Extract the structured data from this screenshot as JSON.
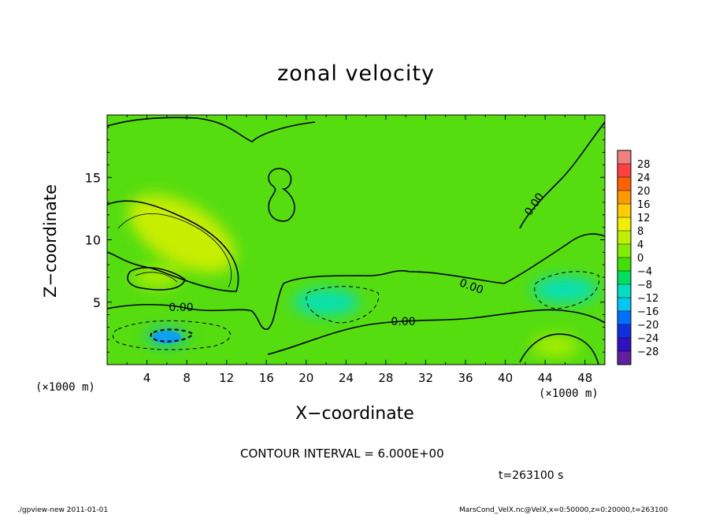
{
  "chart_data": {
    "type": "heatmap",
    "title": "zonal velocity",
    "xlabel": "X−coordinate",
    "ylabel": "Z−coordinate",
    "x_unit_label": "(×1000 m)",
    "x_ticks": [
      "4",
      "8",
      "12",
      "16",
      "20",
      "24",
      "28",
      "32",
      "36",
      "40",
      "44",
      "48"
    ],
    "y_ticks": [
      "5",
      "10",
      "15"
    ],
    "xlim": [
      0,
      50
    ],
    "ylim": [
      0,
      20
    ],
    "colorbar": {
      "labels": [
        "28",
        "24",
        "20",
        "16",
        "12",
        "8",
        "4",
        "0",
        "−4",
        "−8",
        "−12",
        "−16",
        "−20",
        "−24",
        "−28"
      ],
      "colors": [
        "#f08080",
        "#ff4040",
        "#ff6000",
        "#ff9900",
        "#ffcc00",
        "#f0f000",
        "#c0f000",
        "#80ee00",
        "#40e000",
        "#00e060",
        "#00e0c0",
        "#00c8f0",
        "#0070ff",
        "#1030e0",
        "#3010c0",
        "#6020a0"
      ]
    },
    "contour_labels": [
      "0.00",
      "0.00",
      "0.00",
      "0.00"
    ],
    "features": [
      {
        "kind": "max",
        "x": 7.5,
        "z": 10.5,
        "value": 8
      },
      {
        "kind": "max",
        "x": 5,
        "z": 7,
        "value": 6
      },
      {
        "kind": "min",
        "x": 6,
        "z": 2.2,
        "value": -14
      },
      {
        "kind": "min",
        "x": 22,
        "z": 5,
        "value": -10
      },
      {
        "kind": "min",
        "x": 46,
        "z": 6,
        "value": -10
      },
      {
        "kind": "max",
        "x": 45,
        "z": 1.5,
        "value": 5
      }
    ],
    "contour_interval": "CONTOUR INTERVAL = 6.000E+00",
    "time_label": "t=263100 s"
  },
  "footer": {
    "left": "./gpview-new  2011-01-01",
    "right": "MarsCond_VelX.nc@VelX,x=0:50000,z=0:20000,t=263100"
  }
}
